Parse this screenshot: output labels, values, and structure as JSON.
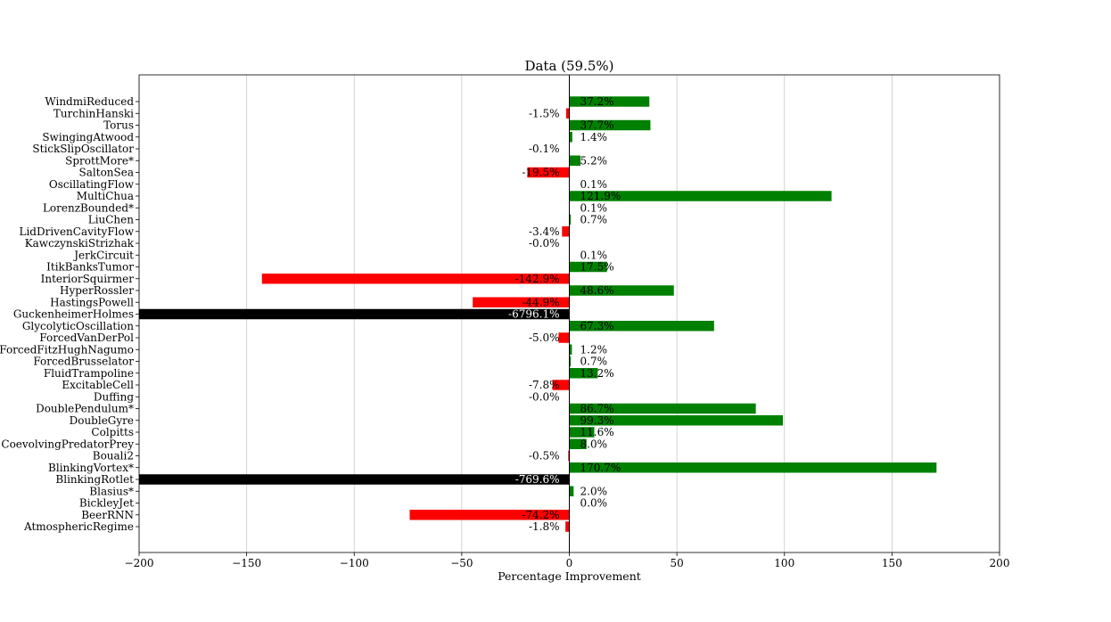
{
  "chart_data": {
    "type": "bar",
    "orientation": "horizontal",
    "title": "Data (59.5%)",
    "xlabel": "Percentage Improvement",
    "ylabel": "",
    "xlim": [
      -200,
      200
    ],
    "xticks": [
      -200,
      -150,
      -100,
      -50,
      0,
      50,
      100,
      150,
      200
    ],
    "xtick_labels": [
      "−200",
      "−150",
      "−100",
      "−50",
      "0",
      "50",
      "100",
      "150",
      "200"
    ],
    "grid": "vertical",
    "colors": {
      "positive": "#008000",
      "negative": "#ff0000",
      "clipped": "#000000"
    },
    "categories": [
      "WindmiReduced",
      "TurchinHanski",
      "Torus",
      "SwingingAtwood",
      "StickSlipOscillator",
      "SprottMore*",
      "SaltonSea",
      "OscillatingFlow",
      "MultiChua",
      "LorenzBounded*",
      "LiuChen",
      "LidDrivenCavityFlow",
      "KawczynskiStrizhak",
      "JerkCircuit",
      "ItikBanksTumor",
      "InteriorSquirmer",
      "HyperRossler",
      "HastingsPowell",
      "GuckenheimerHolmes",
      "GlycolyticOscillation",
      "ForcedVanDerPol",
      "ForcedFitzHughNagumo",
      "ForcedBrusselator",
      "FluidTrampoline",
      "ExcitableCell",
      "Duffing",
      "DoublePendulum*",
      "DoubleGyre",
      "Colpitts",
      "CoevolvingPredatorPrey",
      "Bouali2",
      "BlinkingVortex*",
      "BlinkingRotlet",
      "Blasius*",
      "BickleyJet",
      "BeerRNN",
      "AtmosphericRegime"
    ],
    "values": [
      37.2,
      -1.5,
      37.7,
      1.4,
      -0.1,
      5.2,
      -19.5,
      0.1,
      121.9,
      0.1,
      0.7,
      -3.4,
      -0.0,
      0.1,
      17.5,
      -142.9,
      48.6,
      -44.9,
      -6796.1,
      67.3,
      -5.0,
      1.2,
      0.7,
      13.2,
      -7.8,
      -0.0,
      86.7,
      99.3,
      11.6,
      8.0,
      -0.5,
      170.7,
      -769.6,
      2.0,
      0.0,
      -74.2,
      -1.8
    ],
    "value_labels": [
      "37.2%",
      "-1.5%",
      "37.7%",
      "1.4%",
      "-0.1%",
      "5.2%",
      "-19.5%",
      "0.1%",
      "121.9%",
      "0.1%",
      "0.7%",
      "-3.4%",
      "-0.0%",
      "0.1%",
      "17.5%",
      "-142.9%",
      "48.6%",
      "-44.9%",
      "-6796.1%",
      "67.3%",
      "-5.0%",
      "1.2%",
      "0.7%",
      "13.2%",
      "-7.8%",
      "-0.0%",
      "86.7%",
      "99.3%",
      "11.6%",
      "8.0%",
      "-0.5%",
      "170.7%",
      "-769.6%",
      "2.0%",
      "0.0%",
      "-74.2%",
      "-1.8%"
    ]
  }
}
